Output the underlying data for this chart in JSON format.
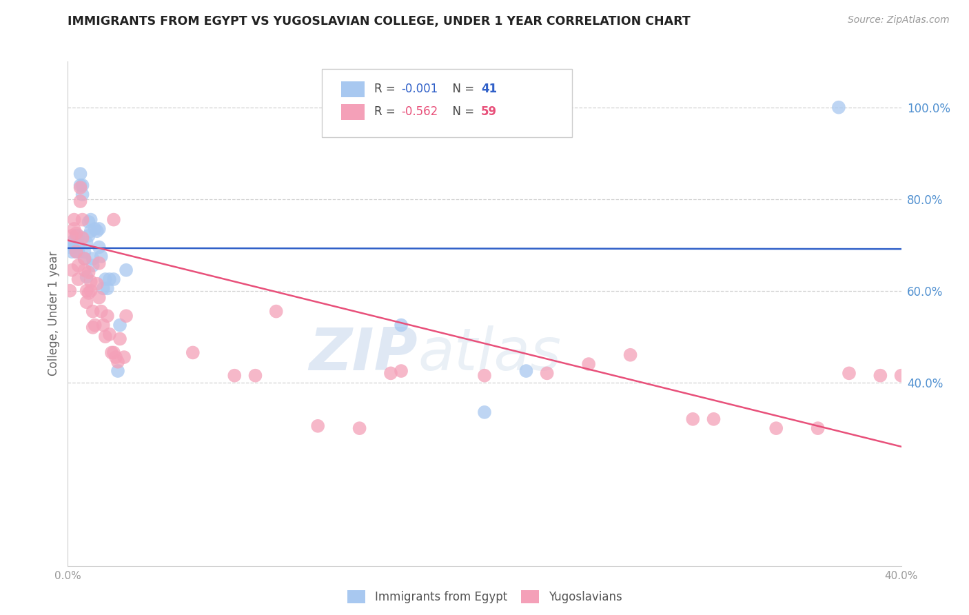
{
  "title": "IMMIGRANTS FROM EGYPT VS YUGOSLAVIAN COLLEGE, UNDER 1 YEAR CORRELATION CHART",
  "source": "Source: ZipAtlas.com",
  "ylabel": "College, Under 1 year",
  "xlim": [
    0.0,
    0.4
  ],
  "ylim": [
    0.0,
    1.1
  ],
  "xtick_labels": [
    "0.0%",
    "",
    "",
    "",
    "40.0%"
  ],
  "xtick_values": [
    0.0,
    0.1,
    0.2,
    0.3,
    0.4
  ],
  "ytick_labels": [
    "100.0%",
    "80.0%",
    "60.0%",
    "40.0%"
  ],
  "ytick_values": [
    1.0,
    0.8,
    0.6,
    0.4
  ],
  "legend_labels": [
    "Immigrants from Egypt",
    "Yugoslavians"
  ],
  "blue_color": "#a8c8f0",
  "pink_color": "#f4a0b8",
  "blue_line_color": "#3060c8",
  "pink_line_color": "#e8507a",
  "blue_R": "-0.001",
  "blue_N": "41",
  "pink_R": "-0.562",
  "pink_N": "59",
  "blue_scatter_x": [
    0.001,
    0.002,
    0.002,
    0.003,
    0.003,
    0.004,
    0.004,
    0.005,
    0.005,
    0.005,
    0.006,
    0.006,
    0.007,
    0.007,
    0.008,
    0.008,
    0.009,
    0.009,
    0.01,
    0.01,
    0.011,
    0.011,
    0.012,
    0.012,
    0.013,
    0.014,
    0.015,
    0.015,
    0.016,
    0.017,
    0.018,
    0.019,
    0.02,
    0.022,
    0.024,
    0.025,
    0.028,
    0.16,
    0.2,
    0.22,
    0.37
  ],
  "blue_scatter_y": [
    0.695,
    0.7,
    0.685,
    0.71,
    0.695,
    0.72,
    0.685,
    0.7,
    0.72,
    0.685,
    0.855,
    0.83,
    0.83,
    0.81,
    0.685,
    0.67,
    0.705,
    0.63,
    0.75,
    0.72,
    0.73,
    0.755,
    0.655,
    0.67,
    0.735,
    0.73,
    0.695,
    0.735,
    0.675,
    0.605,
    0.625,
    0.605,
    0.625,
    0.625,
    0.425,
    0.525,
    0.645,
    0.525,
    0.335,
    0.425,
    1.0
  ],
  "pink_scatter_x": [
    0.001,
    0.002,
    0.002,
    0.003,
    0.003,
    0.004,
    0.004,
    0.005,
    0.005,
    0.006,
    0.006,
    0.007,
    0.007,
    0.008,
    0.008,
    0.009,
    0.009,
    0.01,
    0.01,
    0.011,
    0.011,
    0.012,
    0.012,
    0.013,
    0.014,
    0.015,
    0.015,
    0.016,
    0.017,
    0.018,
    0.019,
    0.02,
    0.021,
    0.022,
    0.022,
    0.023,
    0.024,
    0.025,
    0.027,
    0.028,
    0.06,
    0.08,
    0.09,
    0.1,
    0.12,
    0.14,
    0.155,
    0.16,
    0.2,
    0.23,
    0.25,
    0.27,
    0.3,
    0.31,
    0.34,
    0.36,
    0.375,
    0.39,
    0.4
  ],
  "pink_scatter_y": [
    0.6,
    0.72,
    0.645,
    0.755,
    0.735,
    0.725,
    0.685,
    0.655,
    0.625,
    0.825,
    0.795,
    0.755,
    0.715,
    0.67,
    0.645,
    0.6,
    0.575,
    0.64,
    0.595,
    0.62,
    0.6,
    0.555,
    0.52,
    0.525,
    0.615,
    0.66,
    0.585,
    0.555,
    0.525,
    0.5,
    0.545,
    0.505,
    0.465,
    0.465,
    0.755,
    0.455,
    0.445,
    0.495,
    0.455,
    0.545,
    0.465,
    0.415,
    0.415,
    0.555,
    0.305,
    0.3,
    0.42,
    0.425,
    0.415,
    0.42,
    0.44,
    0.46,
    0.32,
    0.32,
    0.3,
    0.3,
    0.42,
    0.415,
    0.415
  ],
  "blue_trend_x": [
    0.0,
    0.4
  ],
  "blue_trend_y": [
    0.693,
    0.691
  ],
  "pink_trend_x": [
    0.0,
    0.4
  ],
  "pink_trend_y": [
    0.71,
    0.26
  ],
  "watermark_zip": "ZIP",
  "watermark_atlas": "atlas",
  "background_color": "#ffffff",
  "grid_color": "#d0d0d0",
  "right_axis_color": "#5090d0",
  "title_color": "#222222",
  "label_color": "#666666",
  "tick_color": "#999999"
}
